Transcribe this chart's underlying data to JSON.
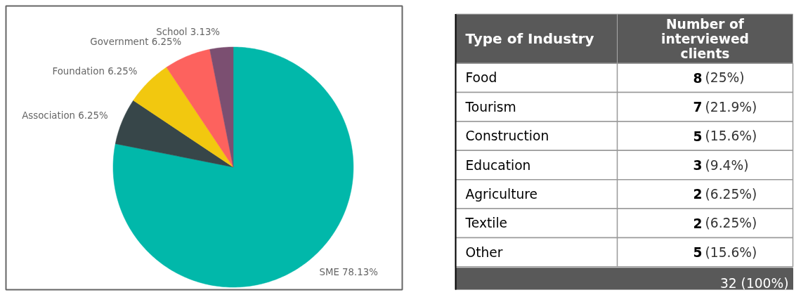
{
  "chart_data": [
    {
      "type": "pie",
      "categories": [
        "SME",
        "Association",
        "Foundation",
        "Government",
        "School"
      ],
      "values": [
        78.13,
        6.25,
        6.25,
        6.25,
        3.13
      ],
      "colors": [
        "#01b8aa",
        "#374649",
        "#f2c80f",
        "#fd625e",
        "#7b4f71"
      ],
      "value_labels": [
        "78.13%",
        "6.25%",
        "6.25%",
        "6.25%",
        "3.13%"
      ]
    },
    {
      "type": "other",
      "xlabel": "Type of Industry",
      "ylabel": "Number of interviewed clients",
      "categories": [
        "Food",
        "Tourism",
        "Construction",
        "Education",
        "Agriculture",
        "Textile",
        "Other"
      ],
      "values": [
        8,
        7,
        5,
        3,
        2,
        2,
        5
      ],
      "value_labels": [
        "8 (25%)",
        "7 (21.9%)",
        "5 (15.6%)",
        "3 (9.4%)",
        "2 (6.25%)",
        "2 (6.25%)",
        "5 (15.6%)"
      ],
      "annotations": [
        "32 (100%)"
      ]
    }
  ]
}
